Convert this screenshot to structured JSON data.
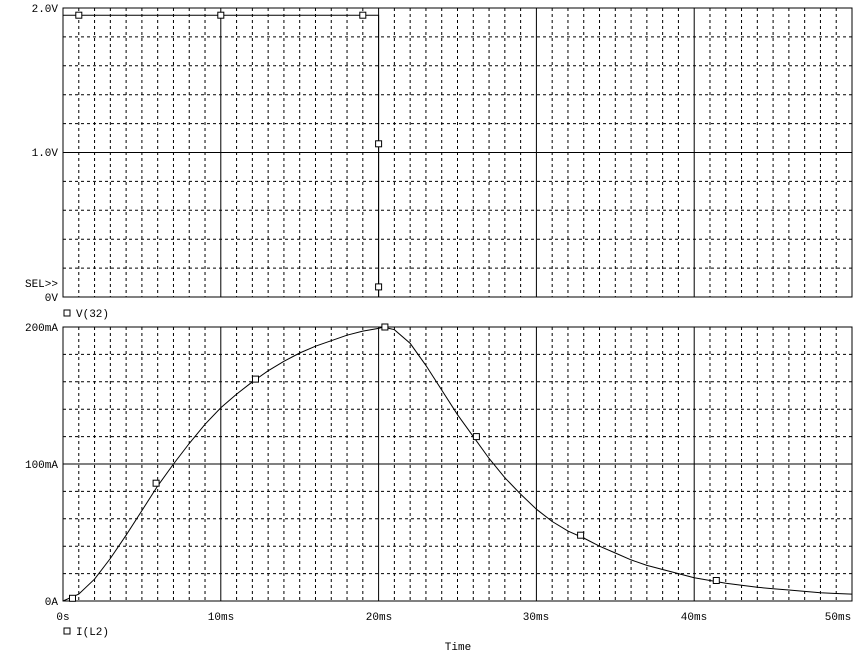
{
  "chart_data": [
    {
      "type": "line",
      "title": "",
      "xlabel": "",
      "ylabel": "",
      "xlim": [
        0,
        50
      ],
      "ylim": [
        0,
        2.0
      ],
      "y_ticks": [
        "0V",
        "1.0V",
        "2.0V"
      ],
      "selector": "SEL>>",
      "grid": true,
      "legend": "bottom-left",
      "series": [
        {
          "name": "V(32)",
          "x": [
            0,
            20,
            20,
            50
          ],
          "y": [
            1.95,
            1.95,
            0,
            0
          ],
          "markers_x": [
            1,
            10,
            19,
            20,
            20
          ],
          "markers_y": [
            1.95,
            1.95,
            1.95,
            1.06,
            0.07
          ]
        }
      ]
    },
    {
      "type": "line",
      "title": "",
      "xlabel": "Time",
      "ylabel": "",
      "xlim": [
        0,
        50
      ],
      "ylim": [
        0,
        200
      ],
      "x_ticks": [
        "0s",
        "10ms",
        "20ms",
        "30ms",
        "40ms",
        "50ms"
      ],
      "y_ticks": [
        "0A",
        "100mA",
        "200mA"
      ],
      "grid": true,
      "legend": "bottom-left",
      "series": [
        {
          "name": "I(L2)",
          "x": [
            0,
            1,
            2,
            3,
            4,
            5,
            6,
            7,
            8,
            9,
            10,
            11,
            12,
            13,
            14,
            15,
            16,
            17,
            18,
            19,
            20,
            20.3,
            21,
            22,
            23,
            24,
            25,
            26,
            27,
            28,
            29,
            30,
            31,
            32,
            33,
            34,
            35,
            36,
            37,
            38,
            39,
            40,
            41,
            42,
            43,
            44,
            45,
            46,
            47,
            48,
            49,
            50
          ],
          "y": [
            0,
            5,
            16,
            31,
            48,
            66,
            84,
            100,
            115,
            129,
            141,
            151,
            160,
            168,
            175,
            181,
            186,
            190,
            194,
            197,
            199,
            200,
            198,
            188,
            172,
            154,
            136,
            120,
            104,
            90,
            78,
            67,
            58,
            51,
            46,
            40,
            35,
            30,
            26,
            23,
            20,
            17,
            15,
            13,
            11.5,
            10,
            9,
            8,
            7,
            6,
            5.5,
            5
          ],
          "markers_x": [
            0.6,
            5.9,
            12.2,
            20.4,
            26.2,
            32.8,
            41.4
          ],
          "markers_y": [
            2,
            86,
            162,
            200,
            120,
            48,
            15
          ]
        }
      ]
    }
  ]
}
